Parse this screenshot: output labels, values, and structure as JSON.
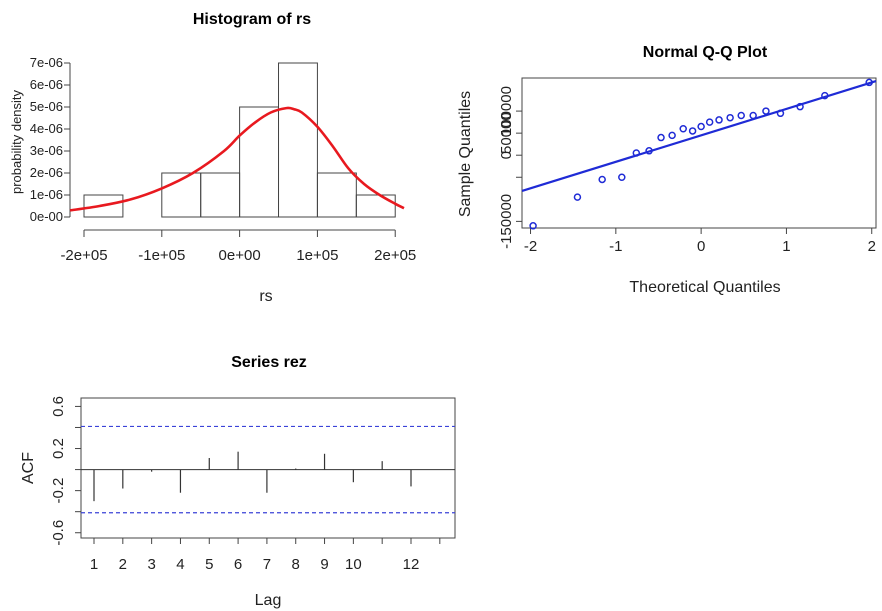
{
  "chart_data": [
    {
      "type": "bar",
      "subtype": "histogram",
      "title": "Histogram of rs",
      "xlabel": "rs",
      "ylabel": "probability density",
      "xlim": [
        -200000,
        210000
      ],
      "ylim": [
        0,
        7e-06
      ],
      "x_ticks": [
        -200000,
        -100000,
        0,
        100000,
        200000
      ],
      "x_tick_labels": [
        "-2e+05",
        "-1e+05",
        "0e+00",
        "1e+05",
        "2e+05"
      ],
      "y_ticks": [
        0,
        1e-06,
        2e-06,
        3e-06,
        4e-06,
        5e-06,
        6e-06,
        7e-06
      ],
      "y_tick_labels": [
        "0e-00",
        "1e-06",
        "2e-06",
        "3e-06",
        "4e-06",
        "5e-06",
        "6e-06",
        "7e-06"
      ],
      "bins": [
        {
          "from": -200000,
          "to": -150000,
          "value": 1e-06
        },
        {
          "from": -150000,
          "to": -100000,
          "value": 0
        },
        {
          "from": -100000,
          "to": -50000,
          "value": 2e-06
        },
        {
          "from": -50000,
          "to": 0,
          "value": 2e-06
        },
        {
          "from": 0,
          "to": 50000,
          "value": 5e-06
        },
        {
          "from": 50000,
          "to": 100000,
          "value": 7e-06
        },
        {
          "from": 100000,
          "to": 150000,
          "value": 2e-06
        },
        {
          "from": 150000,
          "to": 200000,
          "value": 1e-06
        }
      ],
      "density_curve": {
        "color": "#e8191f",
        "x": [
          -220000,
          -180000,
          -140000,
          -100000,
          -60000,
          -20000,
          0,
          20000,
          40000,
          60000,
          70000,
          80000,
          100000,
          120000,
          140000,
          160000,
          180000,
          200000,
          220000
        ],
        "y": [
          3e-07,
          5e-07,
          8e-07,
          1.3e-06,
          2e-06,
          3e-06,
          3.7e-06,
          4.3e-06,
          4.75e-06,
          4.95e-06,
          4.9e-06,
          4.75e-06,
          4.1e-06,
          3.2e-06,
          2.2e-06,
          1.5e-06,
          1e-06,
          6e-07,
          4e-07
        ]
      },
      "grid": false
    },
    {
      "type": "scatter",
      "title": "Normal Q-Q Plot",
      "xlabel": "Theoretical Quantiles",
      "ylabel": "Sample Quantiles",
      "xlim": [
        -2.1,
        2.05
      ],
      "ylim": [
        -165000,
        175000
      ],
      "x_ticks": [
        -2,
        -1,
        0,
        1,
        2
      ],
      "x_tick_labels": [
        "-2",
        "-1",
        "0",
        "1",
        "2"
      ],
      "y_ticks": [
        -150000,
        -50000,
        0,
        50000,
        100000
      ],
      "y_tick_labels": [
        "-150000",
        "",
        "0",
        "50000",
        "100000"
      ],
      "points_color": "#1f2bd6",
      "points": {
        "x": [
          -1.97,
          -1.45,
          -1.16,
          -0.93,
          -0.76,
          -0.61,
          -0.47,
          -0.34,
          -0.21,
          -0.1,
          0,
          0.1,
          0.21,
          0.34,
          0.47,
          0.61,
          0.76,
          0.93,
          1.16,
          1.45,
          1.97
        ],
        "y": [
          -160000,
          -95000,
          -55000,
          -50000,
          5000,
          10000,
          40000,
          45000,
          60000,
          55000,
          65000,
          75000,
          80000,
          85000,
          90000,
          90000,
          100000,
          95000,
          110000,
          135000,
          165000
        ]
      },
      "reference_line": {
        "color": "#1f2bd6",
        "intercept": 45000,
        "slope": 60000
      },
      "grid": false
    },
    {
      "type": "bar",
      "subtype": "acf",
      "title": "Series rez",
      "xlabel": "Lag",
      "ylabel": "ACF",
      "xlim": [
        0.5,
        13.5
      ],
      "ylim": [
        -0.65,
        0.68
      ],
      "x_ticks": [
        1,
        2,
        3,
        4,
        5,
        6,
        7,
        8,
        9,
        10,
        12
      ],
      "x_tick_labels": [
        "1",
        "2",
        "3",
        "4",
        "5",
        "6",
        "7",
        "8",
        "9",
        "10",
        "12"
      ],
      "y_ticks": [
        -0.6,
        -0.2,
        0.2,
        0.6
      ],
      "y_tick_labels": [
        "-0.6",
        "-0.2",
        "0.2",
        "0.6"
      ],
      "y_minor_ticks": [
        -0.4,
        0,
        0.4
      ],
      "lags": [
        1,
        2,
        3,
        4,
        5,
        6,
        7,
        8,
        9,
        10,
        11,
        12
      ],
      "values": [
        -0.3,
        -0.18,
        -0.02,
        -0.22,
        0.11,
        0.17,
        -0.22,
        0.01,
        0.15,
        -0.12,
        0.08,
        -0.16
      ],
      "confidence_bound": 0.41,
      "bound_color": "#3b43d8",
      "grid": false
    }
  ]
}
